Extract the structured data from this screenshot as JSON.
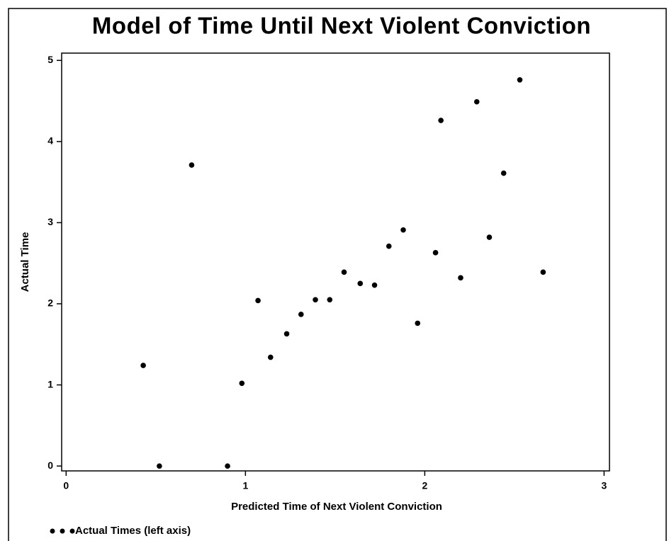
{
  "chart_data": {
    "type": "scatter",
    "title": "Model of Time Until Next Violent Conviction",
    "x_label": "Predicted Time of Next Violent Conviction",
    "y_label": "Actual Time",
    "xlim": [
      -0.025,
      3.03
    ],
    "ylim": [
      -0.06,
      5.09
    ],
    "xticks": [
      0,
      1,
      2,
      3
    ],
    "yticks": [
      0,
      1,
      2,
      3,
      4,
      5
    ],
    "grid": false,
    "legend": "bottom-left",
    "series": [
      {
        "name": "Actual Times (left axis)",
        "color": "#000000",
        "x": [
          0.43,
          0.52,
          0.7,
          0.9,
          0.98,
          1.07,
          1.14,
          1.23,
          1.31,
          1.39,
          1.47,
          1.55,
          1.64,
          1.72,
          1.8,
          1.88,
          1.96,
          2.06,
          2.09,
          2.2,
          2.29,
          2.36,
          2.44,
          2.53,
          2.66
        ],
        "values": [
          1.24,
          0,
          3.71,
          0,
          1.02,
          2.04,
          1.34,
          1.63,
          1.87,
          2.05,
          2.05,
          2.39,
          2.25,
          2.23,
          2.71,
          2.91,
          1.76,
          2.63,
          4.26,
          2.32,
          4.49,
          2.82,
          3.61,
          4.76,
          2.39
        ]
      }
    ]
  }
}
